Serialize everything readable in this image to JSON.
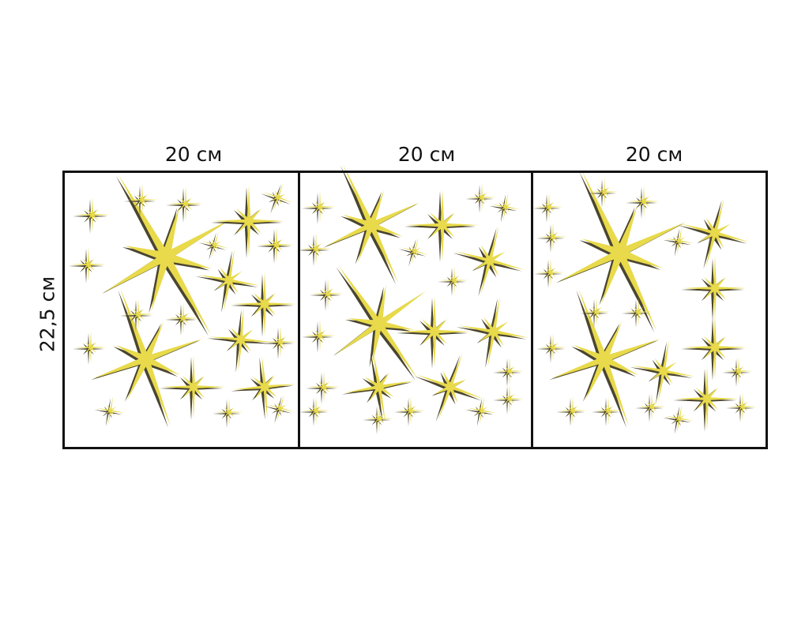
{
  "labels": {
    "width_1": "20 см",
    "width_2": "20 см",
    "width_3": "20 см",
    "height": "22,5 см"
  },
  "colors": {
    "star_fill": "#e8da4a",
    "star_shadow": "#4a4530",
    "frame": "#111111"
  },
  "icons": [
    "eight-point-star-icon"
  ]
}
